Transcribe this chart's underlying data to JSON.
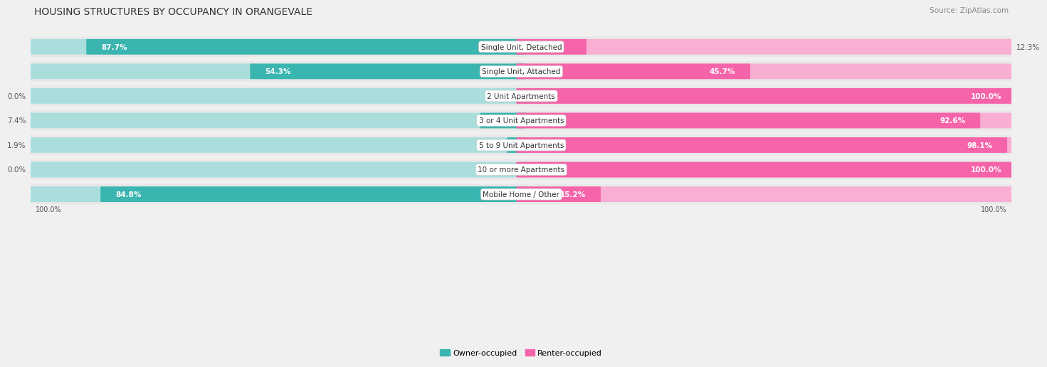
{
  "title": "HOUSING STRUCTURES BY OCCUPANCY IN ORANGEVALE",
  "source": "Source: ZipAtlas.com",
  "categories": [
    "Single Unit, Detached",
    "Single Unit, Attached",
    "2 Unit Apartments",
    "3 or 4 Unit Apartments",
    "5 to 9 Unit Apartments",
    "10 or more Apartments",
    "Mobile Home / Other"
  ],
  "owner_pct": [
    87.7,
    54.3,
    0.0,
    7.4,
    1.9,
    0.0,
    84.8
  ],
  "renter_pct": [
    12.3,
    45.7,
    100.0,
    92.6,
    98.1,
    100.0,
    15.2
  ],
  "owner_color": "#3ab5b0",
  "renter_color": "#f564a9",
  "owner_color_light": "#aadedd",
  "renter_color_light": "#f9aed3",
  "bg_color": "#f0f0f0",
  "row_bg_color": "#e8e8e8",
  "title_fontsize": 10,
  "source_fontsize": 7.5,
  "label_fontsize": 7.5,
  "category_fontsize": 7.5,
  "legend_fontsize": 8
}
